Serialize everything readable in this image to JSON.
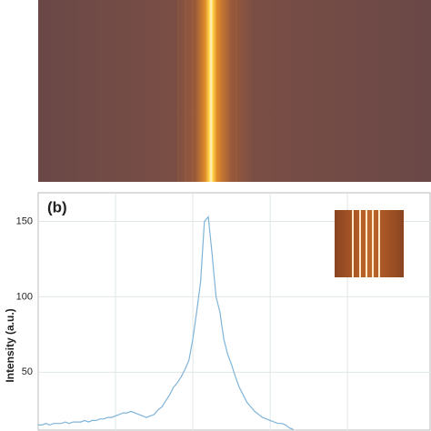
{
  "chart_data": {
    "type": "line",
    "annotation": "(b)",
    "y_label": "Intensity (a.u.)",
    "x": [
      0,
      5,
      10,
      15,
      20,
      25,
      30,
      35,
      40,
      45,
      50,
      55,
      60,
      65,
      70,
      75,
      80,
      85,
      90,
      95,
      100,
      105,
      110,
      115,
      120,
      125,
      130,
      135,
      140,
      145,
      150,
      155,
      160,
      165,
      170,
      175,
      180,
      185,
      190,
      195,
      200,
      205,
      210,
      215,
      220,
      225,
      230,
      235,
      240,
      245,
      250,
      255,
      260,
      265,
      270,
      275,
      280,
      285,
      290,
      295,
      300,
      305,
      310,
      315,
      320,
      325,
      330
    ],
    "series": [
      {
        "color": "#7fb4d9",
        "values": [
          15,
          15,
          16,
          15,
          16,
          16,
          16,
          17,
          16,
          17,
          17,
          17,
          18,
          17,
          18,
          18,
          19,
          19,
          20,
          20,
          21,
          22,
          23,
          23,
          24,
          23,
          22,
          21,
          20,
          21,
          22,
          25,
          27,
          31,
          35,
          40,
          43,
          47,
          52,
          58,
          72,
          90,
          110,
          150,
          153,
          128,
          100,
          90,
          72,
          62,
          55,
          47,
          40,
          35,
          30,
          27,
          24,
          22,
          20,
          19,
          18,
          17,
          16,
          16,
          15,
          13,
          12
        ]
      }
    ],
    "xlim": [
      0,
      508
    ],
    "xticks": [
      100,
      200,
      300,
      400
    ],
    "ylim": [
      11,
      169
    ],
    "yticks": [
      50,
      100,
      150
    ],
    "grid": true
  }
}
